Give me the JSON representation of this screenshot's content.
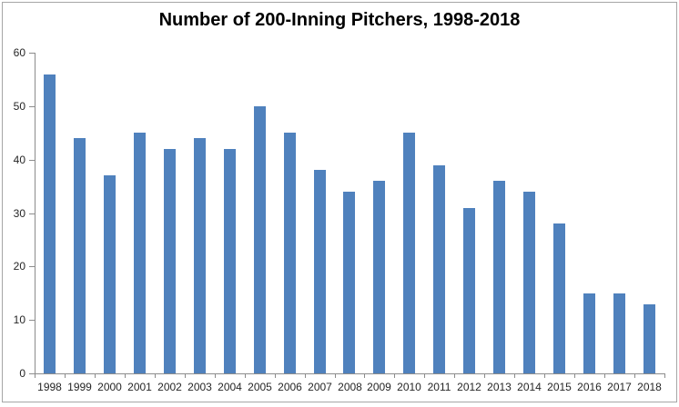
{
  "chart_data": {
    "type": "bar",
    "title": "Number of 200-Inning Pitchers, 1998-2018",
    "categories": [
      "1998",
      "1999",
      "2000",
      "2001",
      "2002",
      "2003",
      "2004",
      "2005",
      "2006",
      "2007",
      "2008",
      "2009",
      "2010",
      "2011",
      "2012",
      "2013",
      "2014",
      "2015",
      "2016",
      "2017",
      "2018"
    ],
    "values": [
      56,
      44,
      37,
      45,
      42,
      44,
      42,
      50,
      45,
      38,
      34,
      36,
      45,
      39,
      31,
      36,
      34,
      28,
      15,
      15,
      13
    ],
    "xlabel": "",
    "ylabel": "",
    "ylim": [
      0,
      60
    ],
    "yticks": [
      0,
      10,
      20,
      30,
      40,
      50,
      60
    ],
    "grid": false,
    "legend": null,
    "bar_color": "#4F81BD",
    "axis_color": "#8C8C8C",
    "text_color": "#262626",
    "border_color": "#A6A6A6",
    "background_color": "#FFFFFF"
  }
}
